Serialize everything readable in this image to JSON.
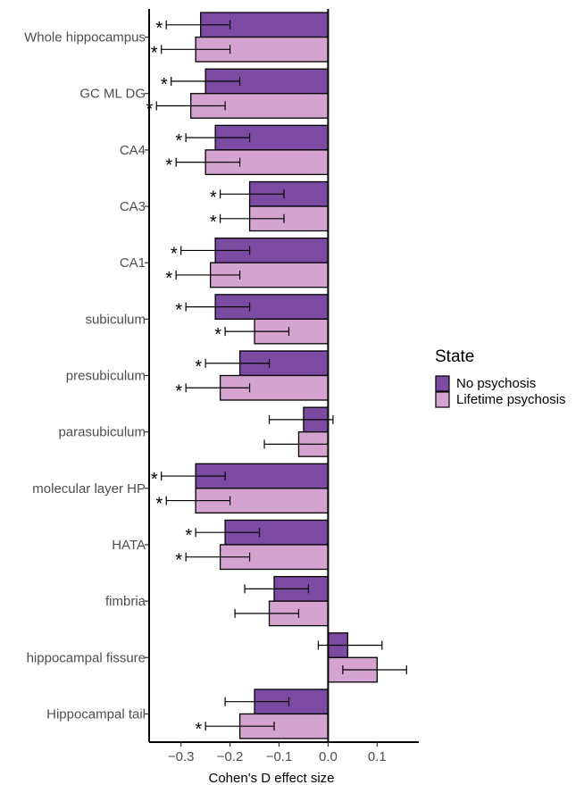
{
  "chart_data": {
    "type": "bar",
    "orientation": "horizontal",
    "xlabel": "Cohen's D effect size",
    "xlim": [
      -0.365,
      0.185
    ],
    "xticks": [
      -0.3,
      -0.2,
      -0.1,
      0.0,
      0.1
    ],
    "xtick_labels": [
      "−0.3",
      "−0.2",
      "−0.1",
      "0.0",
      "0.1"
    ],
    "grid": false,
    "legend": {
      "title": "State",
      "position": "right"
    },
    "categories": [
      "Whole hippocampus",
      "GC ML DG",
      "CA4",
      "CA3",
      "CA1",
      "subiculum",
      "presubiculum",
      "parasubiculum",
      "molecular layer HP",
      "HATA",
      "fimbria",
      "hippocampal fissure",
      "Hippocampal tail"
    ],
    "series": [
      {
        "name": "No psychosis",
        "color": "#7b4ba1",
        "values": [
          -0.26,
          -0.25,
          -0.23,
          -0.16,
          -0.23,
          -0.23,
          -0.18,
          -0.05,
          -0.27,
          -0.21,
          -0.11,
          0.04,
          -0.15
        ],
        "ci_low": [
          -0.33,
          -0.32,
          -0.29,
          -0.22,
          -0.3,
          -0.29,
          -0.25,
          -0.12,
          -0.34,
          -0.27,
          -0.17,
          -0.02,
          -0.21
        ],
        "ci_high": [
          -0.2,
          -0.18,
          -0.16,
          -0.09,
          -0.16,
          -0.16,
          -0.12,
          0.01,
          -0.21,
          -0.14,
          -0.04,
          0.11,
          -0.08
        ],
        "significant": [
          true,
          true,
          true,
          true,
          true,
          true,
          true,
          false,
          true,
          true,
          false,
          false,
          false
        ]
      },
      {
        "name": "Lifetime psychosis",
        "color": "#d4a3cf",
        "values": [
          -0.27,
          -0.28,
          -0.25,
          -0.16,
          -0.24,
          -0.15,
          -0.22,
          -0.06,
          -0.27,
          -0.22,
          -0.12,
          0.1,
          -0.18
        ],
        "ci_low": [
          -0.34,
          -0.35,
          -0.31,
          -0.22,
          -0.31,
          -0.21,
          -0.29,
          -0.13,
          -0.33,
          -0.29,
          -0.19,
          0.03,
          -0.25
        ],
        "ci_high": [
          -0.2,
          -0.21,
          -0.18,
          -0.09,
          -0.18,
          -0.08,
          -0.16,
          0.0,
          -0.2,
          -0.16,
          -0.06,
          0.16,
          -0.11
        ],
        "significant": [
          true,
          true,
          true,
          true,
          true,
          true,
          true,
          false,
          true,
          true,
          false,
          false,
          true
        ]
      }
    ],
    "significance_marker": "*"
  }
}
